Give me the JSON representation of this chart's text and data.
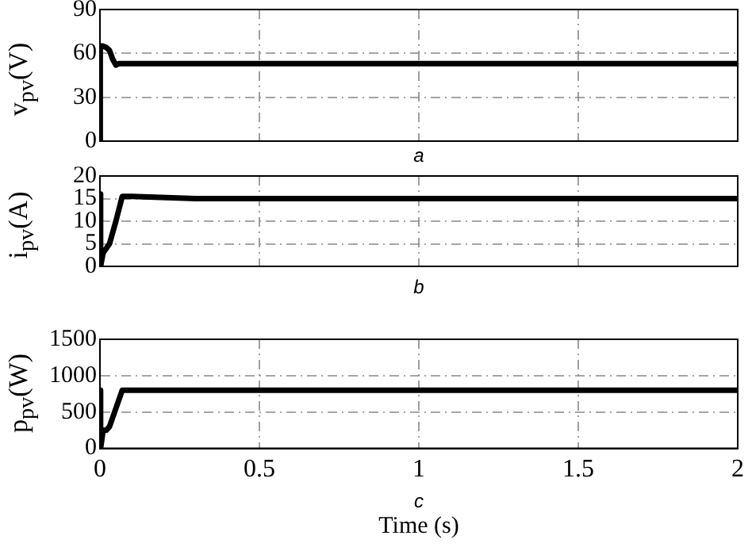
{
  "chart_data": [
    {
      "type": "line",
      "ylabel": "v$_{pv}$(V)",
      "annotations": [
        "a"
      ],
      "xlim": [
        0,
        2
      ],
      "xticks": [
        0,
        0.5,
        1,
        1.5,
        2
      ],
      "ylim": [
        0,
        90
      ],
      "yticks": [
        0,
        30,
        60,
        90
      ],
      "grid": true,
      "legend": false,
      "tick_labels": "y",
      "series": [
        {
          "color": "#000000",
          "x": [
            0,
            0.001,
            0.01,
            0.02,
            0.03,
            0.04,
            0.05,
            0.06,
            0.3,
            2
          ],
          "values": [
            0,
            65,
            65,
            64,
            62,
            56,
            52,
            53,
            53,
            53
          ]
        }
      ]
    },
    {
      "type": "line",
      "ylabel": "i$_{pv}$(A)",
      "annotations": [
        "b"
      ],
      "xlim": [
        0,
        2
      ],
      "xticks": [
        0,
        0.5,
        1,
        1.5,
        2
      ],
      "ylim": [
        0,
        20
      ],
      "yticks": [
        0,
        5,
        10,
        15,
        20
      ],
      "grid": true,
      "legend": false,
      "tick_labels": "y",
      "series": [
        {
          "color": "#000000",
          "x": [
            0,
            0.001,
            0.003,
            0.01,
            0.02,
            0.03,
            0.05,
            0.07,
            0.1,
            0.3,
            2
          ],
          "values": [
            0,
            16,
            0,
            3,
            4,
            5,
            10,
            15.5,
            15.5,
            15,
            15
          ]
        }
      ]
    },
    {
      "type": "line",
      "ylabel": "p$_{pv}$(W)",
      "xlabel": "Time (s)",
      "annotations": [
        "c"
      ],
      "xlim": [
        0,
        2
      ],
      "xticks": [
        0,
        0.5,
        1,
        1.5,
        2
      ],
      "ylim": [
        0,
        1500
      ],
      "yticks": [
        0,
        500,
        1000,
        1500
      ],
      "grid": true,
      "legend": false,
      "series": [
        {
          "color": "#000000",
          "x": [
            0,
            0.001,
            0.003,
            0.01,
            0.02,
            0.03,
            0.05,
            0.07,
            0.08,
            2
          ],
          "values": [
            0,
            800,
            0,
            250,
            250,
            300,
            550,
            800,
            800,
            800
          ]
        }
      ]
    }
  ]
}
